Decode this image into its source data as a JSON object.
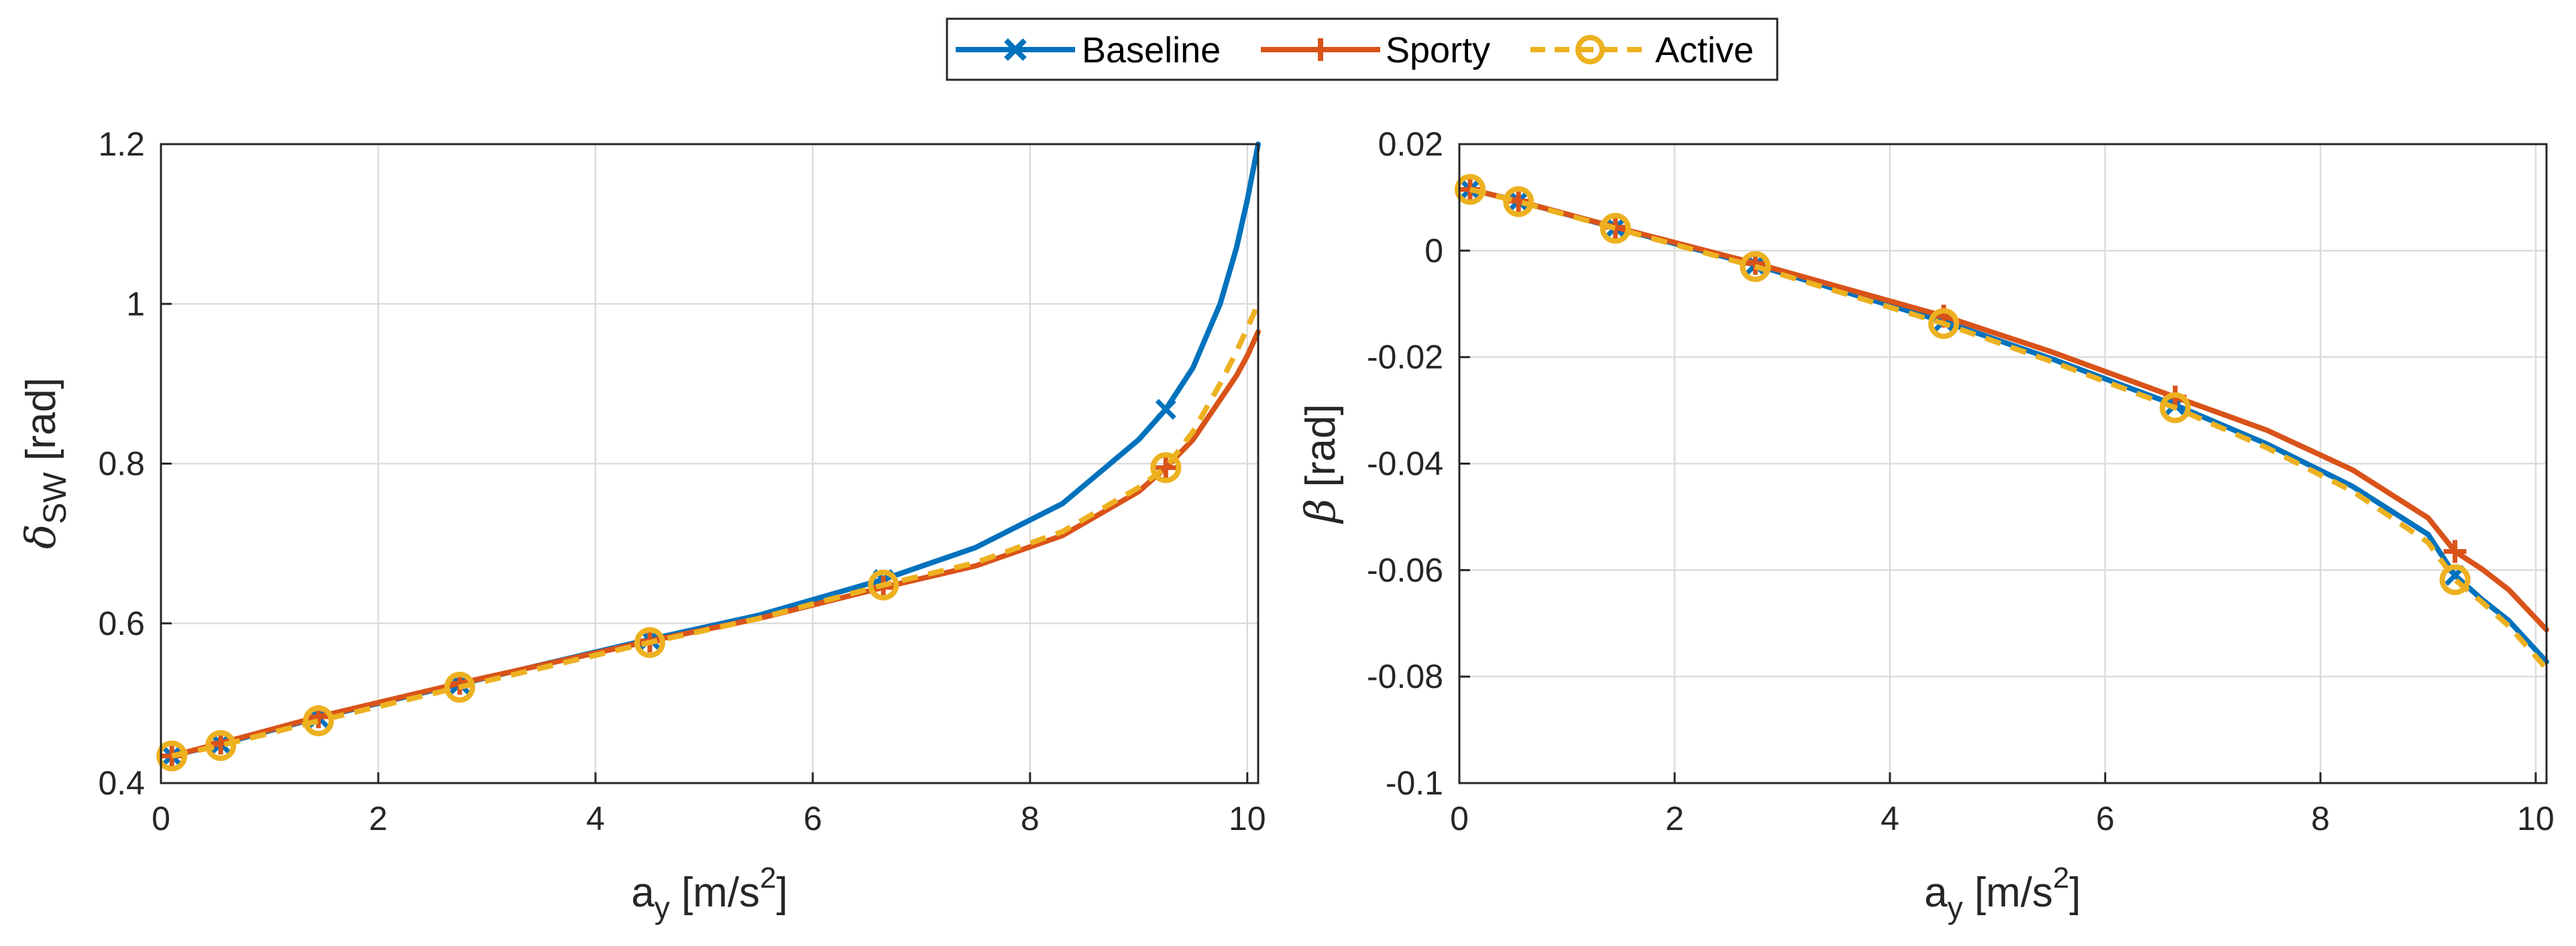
{
  "legend": {
    "entries": [
      {
        "name": "Baseline",
        "color": "#0072BD",
        "style": "solid",
        "marker": "x"
      },
      {
        "name": "Sporty",
        "color": "#D95319",
        "style": "solid",
        "marker": "+"
      },
      {
        "name": "Active",
        "color": "#EDB120",
        "style": "dashed",
        "marker": "o"
      }
    ]
  },
  "chart_data": [
    {
      "type": "line",
      "title": "",
      "xlabel": "a_y [m/s^2]",
      "xlabel_main": "a",
      "xlabel_sub": "y",
      "xlabel_unit": " [m/s",
      "xlabel_sup": "2",
      "xlabel_close": "]",
      "ylabel": "δ_SW [rad]",
      "ylabel_main": "δ",
      "ylabel_sub": "SW",
      "ylabel_unit": " [rad]",
      "xlim": [
        0,
        10.1
      ],
      "ylim": [
        0.4,
        1.2
      ],
      "xticks": [
        0,
        2,
        4,
        6,
        8,
        10
      ],
      "xtick_labels": [
        "0",
        "2",
        "4",
        "6",
        "8",
        "10"
      ],
      "yticks": [
        0.4,
        0.6,
        0.8,
        1.0,
        1.2
      ],
      "ytick_labels": [
        "0.4",
        "0.6",
        "0.8",
        "1",
        "1.2"
      ],
      "grid": true,
      "series": [
        {
          "name": "Baseline",
          "color": "#0072BD",
          "dashed": false,
          "marker": "x",
          "x": [
            0.1,
            0.55,
            1.45,
            2.75,
            4.5,
            5.5,
            6.65,
            7.5,
            8.3,
            9.0,
            9.25,
            9.5,
            9.75,
            9.9,
            10.0,
            10.1
          ],
          "y": [
            0.434,
            0.449,
            0.482,
            0.524,
            0.58,
            0.61,
            0.655,
            0.695,
            0.75,
            0.83,
            0.868,
            0.92,
            1.0,
            1.07,
            1.13,
            1.2
          ],
          "marker_x": [
            0.1,
            0.55,
            1.45,
            2.75,
            4.5,
            6.65,
            9.25
          ]
        },
        {
          "name": "Sporty",
          "color": "#D95319",
          "dashed": false,
          "marker": "+",
          "x": [
            0.1,
            0.55,
            1.45,
            2.75,
            4.5,
            5.5,
            6.65,
            7.5,
            8.3,
            9.0,
            9.25,
            9.5,
            9.75,
            9.9,
            10.0,
            10.1
          ],
          "y": [
            0.434,
            0.45,
            0.483,
            0.525,
            0.578,
            0.606,
            0.645,
            0.672,
            0.71,
            0.765,
            0.795,
            0.83,
            0.88,
            0.91,
            0.935,
            0.965
          ],
          "marker_x": [
            0.1,
            0.55,
            1.45,
            2.75,
            4.5,
            6.65,
            9.25
          ]
        },
        {
          "name": "Active",
          "color": "#EDB120",
          "dashed": true,
          "marker": "o",
          "x": [
            0.1,
            0.55,
            1.45,
            2.75,
            4.5,
            5.5,
            6.65,
            7.5,
            8.3,
            9.0,
            9.25,
            9.5,
            9.75,
            9.9,
            10.0,
            10.1
          ],
          "y": [
            0.434,
            0.447,
            0.478,
            0.52,
            0.576,
            0.606,
            0.648,
            0.676,
            0.715,
            0.77,
            0.795,
            0.84,
            0.9,
            0.94,
            0.97,
            1.0
          ],
          "marker_x": [
            0.1,
            0.55,
            1.45,
            2.75,
            4.5,
            6.65,
            9.25
          ]
        }
      ]
    },
    {
      "type": "line",
      "title": "",
      "xlabel": "a_y [m/s^2]",
      "xlabel_main": "a",
      "xlabel_sub": "y",
      "xlabel_unit": " [m/s",
      "xlabel_sup": "2",
      "xlabel_close": "]",
      "ylabel": "β [rad]",
      "ylabel_main": "β",
      "ylabel_sub": "",
      "ylabel_unit": " [rad]",
      "xlim": [
        0,
        10.1
      ],
      "ylim": [
        -0.1,
        0.02
      ],
      "xticks": [
        0,
        2,
        4,
        6,
        8,
        10
      ],
      "xtick_labels": [
        "0",
        "2",
        "4",
        "6",
        "8",
        "10"
      ],
      "yticks": [
        -0.1,
        -0.08,
        -0.06,
        -0.04,
        -0.02,
        0,
        0.02
      ],
      "ytick_labels": [
        "-0.1",
        "-0.08",
        "-0.06",
        "-0.04",
        "-0.02",
        "0",
        "0.02"
      ],
      "grid": true,
      "series": [
        {
          "name": "Baseline",
          "color": "#0072BD",
          "dashed": false,
          "marker": "x",
          "x": [
            0.1,
            0.55,
            1.45,
            2.75,
            4.5,
            5.5,
            6.65,
            7.5,
            8.3,
            9.0,
            9.25,
            9.5,
            9.75,
            10.1
          ],
          "y": [
            0.0115,
            0.0093,
            0.0043,
            -0.0027,
            -0.0133,
            -0.0203,
            -0.029,
            -0.0363,
            -0.0443,
            -0.0533,
            -0.061,
            -0.0655,
            -0.0695,
            -0.0772
          ],
          "marker_x": [
            0.1,
            0.55,
            1.45,
            2.75,
            4.5,
            6.65,
            9.25
          ]
        },
        {
          "name": "Sporty",
          "color": "#D95319",
          "dashed": false,
          "marker": "+",
          "x": [
            0.1,
            0.55,
            1.45,
            2.75,
            4.5,
            5.5,
            6.65,
            7.5,
            8.3,
            9.0,
            9.25,
            9.5,
            9.75,
            10.1
          ],
          "y": [
            0.0115,
            0.0093,
            0.0044,
            -0.0024,
            -0.0123,
            -0.019,
            -0.0275,
            -0.0337,
            -0.0412,
            -0.0502,
            -0.0565,
            -0.0598,
            -0.0637,
            -0.0712
          ],
          "marker_x": [
            0.1,
            0.55,
            1.45,
            2.75,
            4.5,
            6.65,
            9.25
          ]
        },
        {
          "name": "Active",
          "color": "#EDB120",
          "dashed": true,
          "marker": "o",
          "x": [
            0.1,
            0.55,
            1.45,
            2.75,
            4.5,
            5.5,
            6.65,
            7.5,
            8.3,
            9.0,
            9.25,
            9.5,
            9.75,
            10.1
          ],
          "y": [
            0.0115,
            0.0092,
            0.0042,
            -0.003,
            -0.0137,
            -0.0208,
            -0.0295,
            -0.037,
            -0.0452,
            -0.0548,
            -0.0618,
            -0.066,
            -0.0705,
            -0.0785
          ],
          "marker_x": [
            0.1,
            0.55,
            1.45,
            2.75,
            4.5,
            6.65,
            9.25
          ]
        }
      ]
    }
  ]
}
